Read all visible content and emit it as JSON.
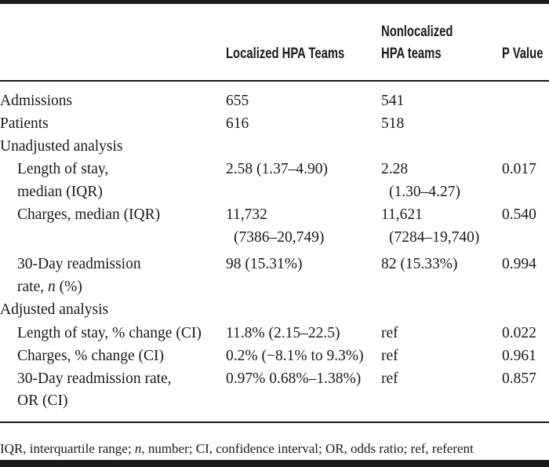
{
  "header": {
    "col1": "Localized HPA Teams",
    "col2_line1": "Nonlocalized",
    "col2_line2": "HPA teams",
    "col3": "P Value"
  },
  "rows": {
    "admissions": {
      "label": "Admissions",
      "local": "655",
      "nonlocal": "541"
    },
    "patients": {
      "label": "Patients",
      "local": "616",
      "nonlocal": "518"
    },
    "unadjusted": {
      "label": "Unadjusted analysis"
    },
    "los": {
      "label_line1": "Length of stay,",
      "label_line2": "median (IQR)",
      "local": "2.58 (1.37–4.90)",
      "nonlocal_line1": "2.28",
      "nonlocal_line2": "(1.30–4.27)",
      "p": "0.017"
    },
    "charges": {
      "label": "Charges, median (IQR)",
      "local_line1": "11,732",
      "local_line2": "(7386–20,749)",
      "nonlocal_line1": "11,621",
      "nonlocal_line2": "(7284–19,740)",
      "p": "0.540"
    },
    "readmit": {
      "label_line1": "30-Day readmission",
      "label_line2_pre": "rate, ",
      "label_line2_n": "n",
      "label_line2_post": " (%)",
      "local": "98 (15.31%)",
      "nonlocal": "82 (15.33%)",
      "p": "0.994"
    },
    "adjusted": {
      "label": "Adjusted analysis"
    },
    "adj_los": {
      "label": "Length of stay, % change (CI)",
      "local": "11.8% (2.15–22.5)",
      "nonlocal": "ref",
      "p": "0.022"
    },
    "adj_charges": {
      "label": "Charges, % change (CI)",
      "local": "0.2% (−8.1% to 9.3%)",
      "nonlocal": "ref",
      "p": "0.961"
    },
    "adj_readmit": {
      "label_line1": "30-Day readmission rate,",
      "label_line2": "OR (CI)",
      "local": "0.97% 0.68%–1.38%)",
      "nonlocal": "ref",
      "p": "0.857"
    }
  },
  "footnote": {
    "part1": "IQR, interquartile range; ",
    "n": "n",
    "part2": ", number; CI, confidence interval; OR, odds ratio; ref, referent"
  }
}
